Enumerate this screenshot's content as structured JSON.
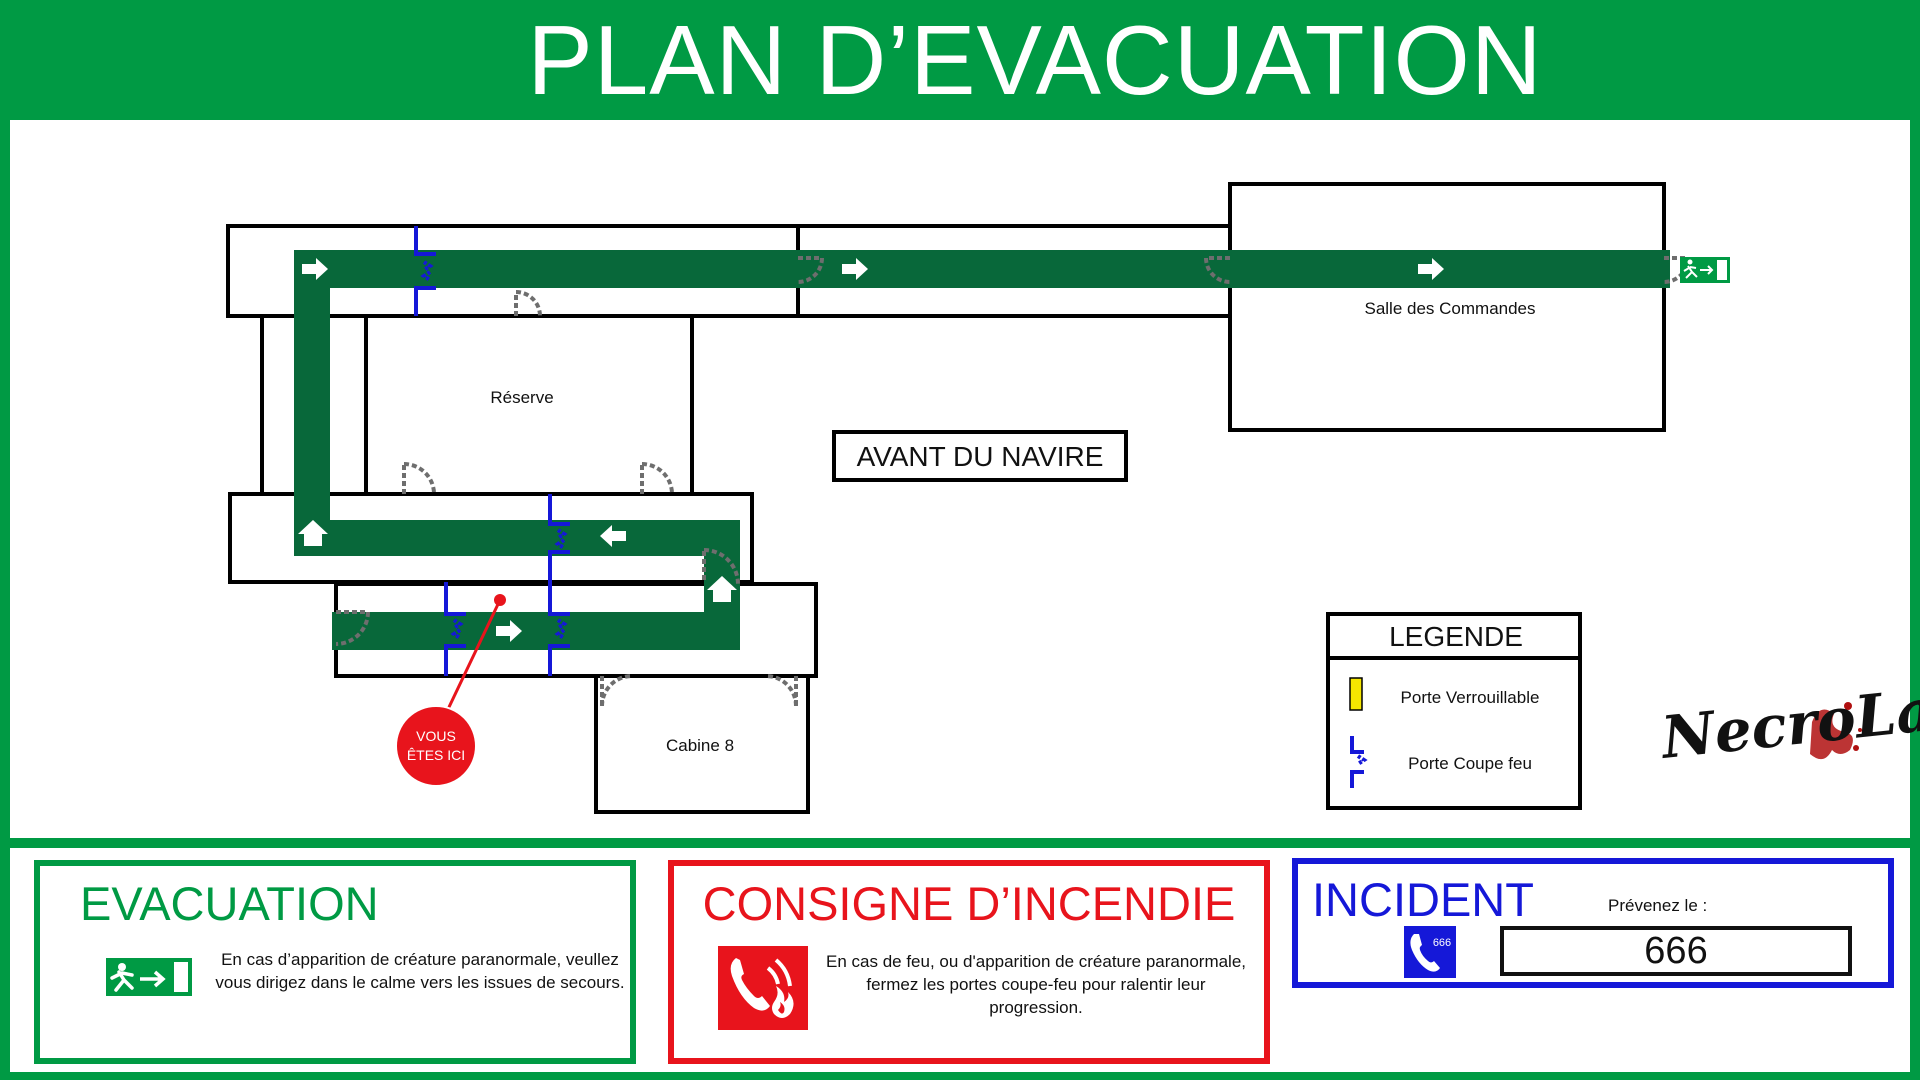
{
  "title": "PLAN D’EVACUATION",
  "plan": {
    "rooms": {
      "reserve": "Réserve",
      "salle_commandes": "Salle des Commandes",
      "cabine": "Cabine 8"
    },
    "direction_label": "AVANT DU NAVIRE",
    "you_are_here": [
      "VOUS",
      "ÊTES ICI"
    ]
  },
  "legend": {
    "title": "LEGENDE",
    "items": [
      {
        "label": "Porte Verrouillable",
        "icon": "locked-door-icon"
      },
      {
        "label": "Porte Coupe feu",
        "icon": "fire-door-icon"
      }
    ]
  },
  "logo": {
    "text": "NecroLab"
  },
  "evacuation": {
    "heading": "EVACUATION",
    "text": "En cas d’apparition de créature paranormale, veullez vous dirigez dans le calme vers les issues de secours.",
    "icon": "emergency-exit-icon"
  },
  "incendie": {
    "heading": "CONSIGNE D’INCENDIE",
    "text": "En cas de feu, ou d'apparition de créature paranormale, fermez les portes coupe-feu pour ralentir leur progression.",
    "icon": "fire-phone-icon"
  },
  "incident": {
    "heading": "INCIDENT",
    "label": "Prévenez le :",
    "number": "666",
    "icon_text": "666"
  },
  "colors": {
    "green": "#009a44",
    "route": "#08683a",
    "red": "#e8141c",
    "blue": "#1518d8",
    "fire_door": "#1a1ad0",
    "locked_door": "#f5e600"
  }
}
